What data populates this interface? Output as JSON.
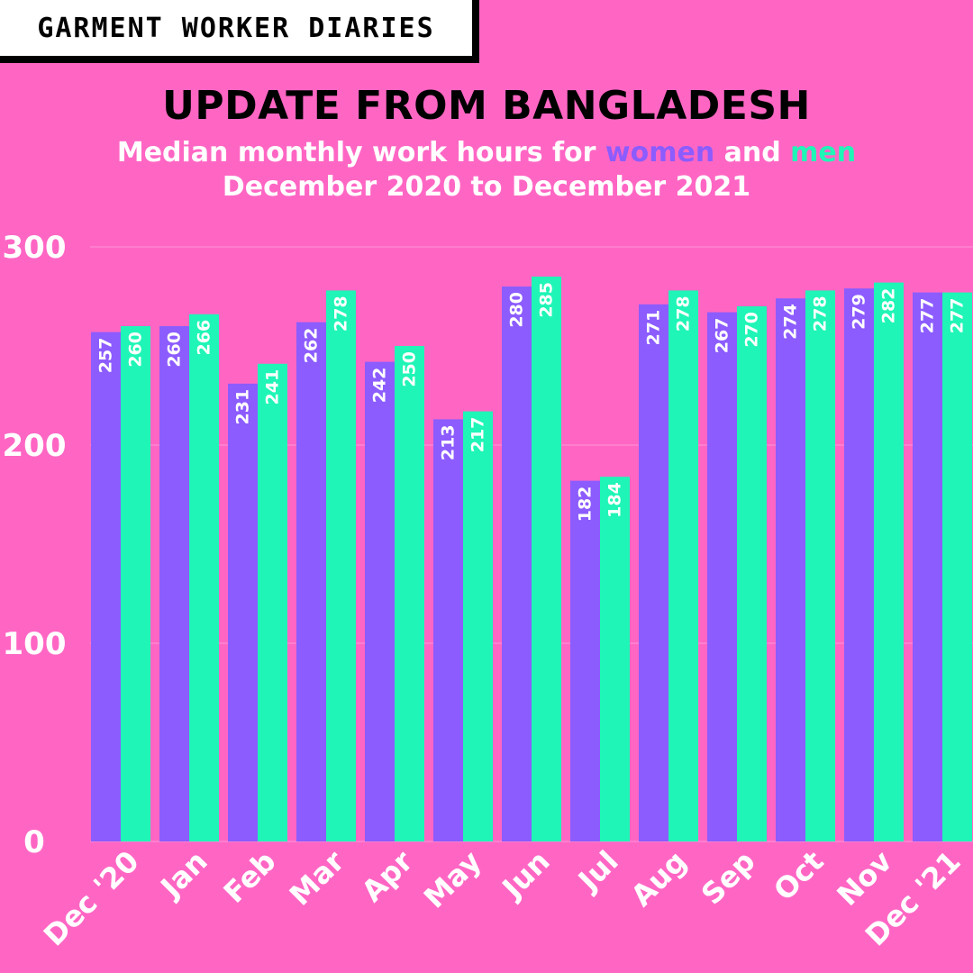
{
  "brand": "GARMENT WORKER DIARIES",
  "title": "UPDATE FROM BANGLADESH",
  "subtitle": {
    "line1_prefix": "Median monthly work hours for ",
    "women": "women",
    "and": " and ",
    "men": "men",
    "line2": "December 2020 to December 2021"
  },
  "chart_data": {
    "type": "bar",
    "categories": [
      "Dec '20",
      "Jan",
      "Feb",
      "Mar",
      "Apr",
      "May",
      "Jun",
      "Jul",
      "Aug",
      "Sep",
      "Oct",
      "Nov",
      "Dec '21"
    ],
    "series": [
      {
        "name": "women",
        "color": "#8c5cff",
        "values": [
          257,
          260,
          231,
          262,
          242,
          213,
          280,
          182,
          271,
          267,
          274,
          279,
          277
        ]
      },
      {
        "name": "men",
        "color": "#1ff5b6",
        "values": [
          260,
          266,
          241,
          278,
          250,
          217,
          285,
          184,
          278,
          270,
          278,
          282,
          277
        ]
      }
    ],
    "ylim": [
      0,
      300
    ],
    "yticks": [
      0,
      100,
      200,
      300
    ],
    "grid": true,
    "xlabel": "",
    "ylabel": ""
  }
}
